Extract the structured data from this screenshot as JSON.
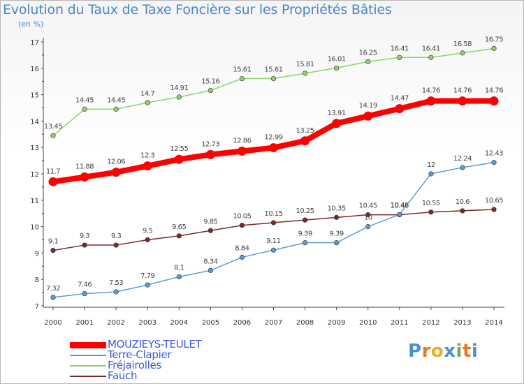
{
  "title": "Evolution du Taux de Taxe Foncière sur les Propriétés Bâties",
  "subtitle": "(en %)",
  "logo": {
    "text": "Proxiti",
    "letters": [
      "P",
      "r",
      "o",
      "x",
      "i",
      "t",
      "i"
    ],
    "colors": [
      "#4a90d0",
      "#e87722",
      "#e8b020",
      "#4a90d0",
      "#6ab04c",
      "#e87722",
      "#4a90d0"
    ]
  },
  "legend_items": [
    {
      "name": "MOUZIEYS-TEULET",
      "color": "#ff0000"
    },
    {
      "name": "Terre-Clapier",
      "color": "#5b9bd5"
    },
    {
      "name": "Fréjairolles",
      "color": "#8fd16a"
    },
    {
      "name": "Fauch",
      "color": "#7a2a2a"
    }
  ],
  "chart_data": {
    "type": "line",
    "title": "Evolution du Taux de Taxe Foncière sur les Propriétés Bâties",
    "ylabel": "(en %)",
    "xlabel": "",
    "x": [
      "2000",
      "2001",
      "2002",
      "2003",
      "2004",
      "2005",
      "2006",
      "2007",
      "2008",
      "2009",
      "2010",
      "2011",
      "2012",
      "2013",
      "2014"
    ],
    "ylim": [
      7,
      17
    ],
    "yticks": [
      7,
      8,
      9,
      10,
      11,
      12,
      13,
      14,
      15,
      16,
      17
    ],
    "grid": false,
    "legend_position": "bottom-left",
    "series": [
      {
        "name": "MOUZIEYS-TEULET",
        "color": "#ff0000",
        "values": [
          11.7,
          11.88,
          12.06,
          12.3,
          12.55,
          12.73,
          12.86,
          12.99,
          13.25,
          13.91,
          14.19,
          14.47,
          14.76,
          14.76,
          14.76
        ],
        "labels": [
          "11.7",
          "11.88",
          "12.06",
          "12.3",
          "12.55",
          "12.73",
          "12.86",
          "12.99",
          "13.25",
          "13.91",
          "14.19",
          "14.47",
          "14.76",
          "14.76",
          "14.76"
        ]
      },
      {
        "name": "Terre-Clapier",
        "color": "#5b9bd5",
        "values": [
          7.32,
          7.46,
          7.53,
          7.79,
          8.1,
          8.34,
          8.84,
          9.11,
          9.39,
          9.39,
          10,
          10.46,
          12,
          12.24,
          12.43
        ],
        "labels": [
          "7.32",
          "7.46",
          "7.53",
          "7.79",
          "8.1",
          "8.34",
          "8.84",
          "9.11",
          "9.39",
          "9.39",
          "10",
          "10.46",
          "12",
          "12.24",
          "12.43"
        ]
      },
      {
        "name": "Fréjairolles",
        "color": "#8fd16a",
        "values": [
          13.45,
          14.45,
          14.45,
          14.7,
          14.91,
          15.16,
          15.61,
          15.61,
          15.81,
          16.01,
          16.25,
          16.41,
          16.41,
          16.58,
          16.75
        ],
        "labels": [
          "13.45",
          "14.45",
          "14.45",
          "14.7",
          "14.91",
          "15.16",
          "15.61",
          "15.61",
          "15.81",
          "16.01",
          "16.25",
          "16.41",
          "16.41",
          "16.58",
          "16.75"
        ]
      },
      {
        "name": "Fauch",
        "color": "#7a2a2a",
        "values": [
          9.1,
          9.3,
          9.3,
          9.5,
          9.65,
          9.85,
          10.05,
          10.15,
          10.25,
          10.35,
          10.45,
          10.45,
          10.55,
          10.6,
          10.65
        ],
        "labels": [
          "9.1",
          "9.3",
          "9.3",
          "9.5",
          "9.65",
          "9.85",
          "10.05",
          "10.15",
          "10.25",
          "10.35",
          "10.45",
          "10.45",
          "10.55",
          "10.6",
          "10.65"
        ]
      }
    ]
  }
}
